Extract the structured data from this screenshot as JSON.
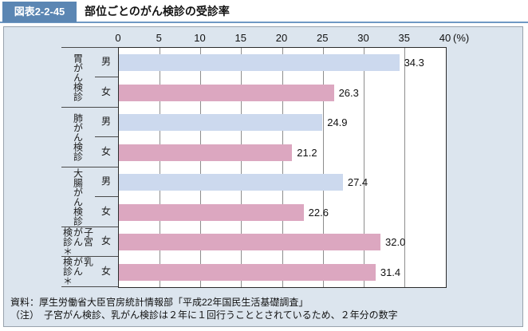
{
  "header": {
    "badge": "図表2-2-45",
    "title": "部位ごとのがん検診の受診率"
  },
  "chart_data": {
    "type": "bar",
    "orientation": "horizontal",
    "title": "部位ごとのがん検診の受診率",
    "xlim": [
      0,
      40
    ],
    "xticks": [
      "0",
      "5",
      "10",
      "15",
      "20",
      "25",
      "30",
      "35",
      "40"
    ],
    "unit_label": "(%)",
    "grid": true,
    "legend": "none",
    "groups": [
      {
        "label": "胃がん検診",
        "label_columns": [
          "胃がん検診"
        ],
        "rows": [
          {
            "gender": "男",
            "value": 34.3,
            "value_label": "34.3",
            "color": "#ccd9ee"
          },
          {
            "gender": "女",
            "value": 26.3,
            "value_label": "26.3",
            "color": "#dca7c0"
          }
        ]
      },
      {
        "label": "肺がん検診",
        "label_columns": [
          "肺がん検診"
        ],
        "rows": [
          {
            "gender": "男",
            "value": 24.9,
            "value_label": "24.9",
            "color": "#ccd9ee"
          },
          {
            "gender": "女",
            "value": 21.2,
            "value_label": "21.2",
            "color": "#dca7c0"
          }
        ]
      },
      {
        "label": "大腸がん検診",
        "label_columns": [
          "大腸がん検診"
        ],
        "rows": [
          {
            "gender": "男",
            "value": 27.4,
            "value_label": "27.4",
            "color": "#ccd9ee"
          },
          {
            "gender": "女",
            "value": 22.6,
            "value_label": "22.6",
            "color": "#dca7c0"
          }
        ]
      },
      {
        "label": "子宮がん検診＊",
        "label_columns": [
          "子宮",
          "がん",
          "検診＊"
        ],
        "rows": [
          {
            "gender": "女",
            "value": 32.0,
            "value_label": "32.0",
            "color": "#dca7c0"
          }
        ]
      },
      {
        "label": "乳がん検診＊",
        "label_columns": [
          "乳",
          "がん",
          "検診＊"
        ],
        "rows": [
          {
            "gender": "女",
            "value": 31.4,
            "value_label": "31.4",
            "color": "#dca7c0"
          }
        ]
      }
    ],
    "colors": {
      "male_bar": "#ccd9ee",
      "female_bar": "#dca7c0"
    }
  },
  "footer": {
    "source": "資料：厚生労働省大臣官房統計情報部「平成22年国民生活基礎調査」",
    "note": "（注）　子宮がん検診、乳がん検診は２年に１回行うこととされているため、２年分の数字"
  },
  "colors": {
    "badge_bg": "#5b86b3",
    "header_rule": "#6f99c4",
    "panel_bg": "#dce5ee",
    "plot_bg": "#ffffff",
    "male_bar": "#ccd9ee",
    "female_bar": "#dca7c0"
  }
}
